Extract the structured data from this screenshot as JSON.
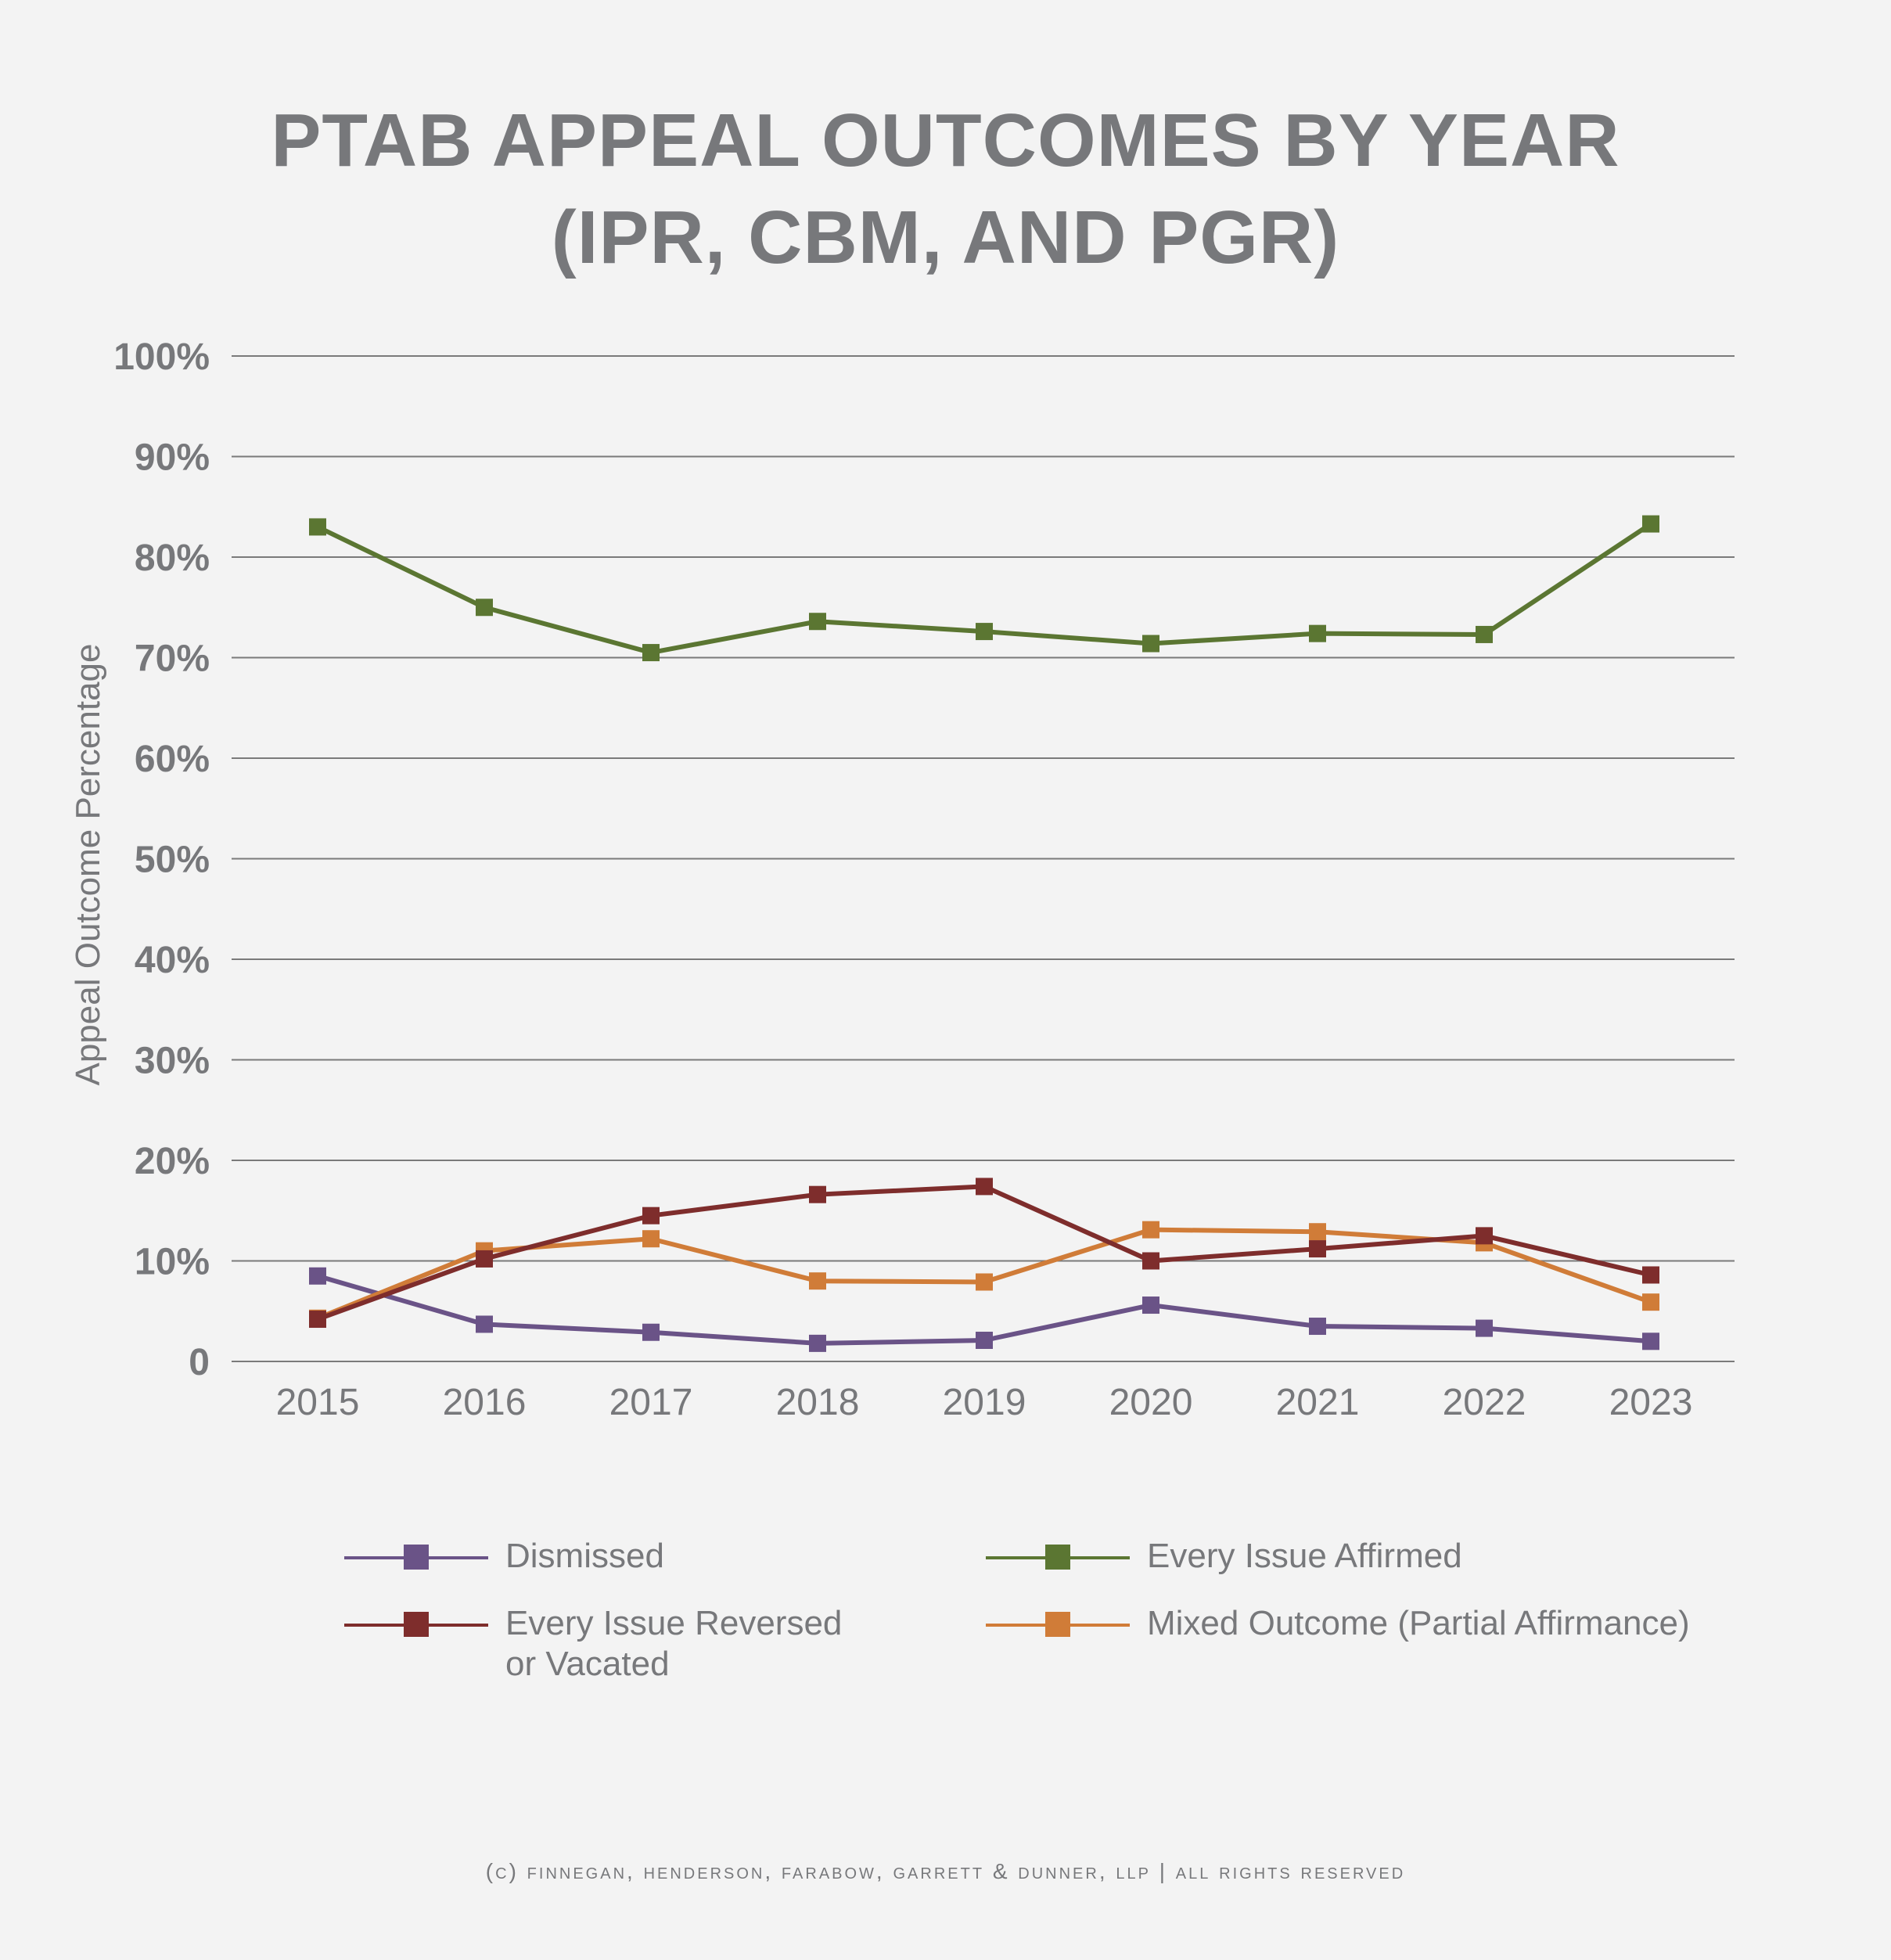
{
  "title_line1": "PTAB APPEAL OUTCOMES BY YEAR",
  "title_line2": "(IPR, CBM, AND PGR)",
  "footer": "(c) finnegan, henderson, farabow, garrett & dunner, llp | all rights reserved",
  "chart_data": {
    "type": "line",
    "title": "PTAB APPEAL OUTCOMES BY YEAR (IPR, CBM, AND PGR)",
    "xlabel": "",
    "ylabel": "Appeal Outcome Percentage",
    "categories": [
      "2015",
      "2016",
      "2017",
      "2018",
      "2019",
      "2020",
      "2021",
      "2022",
      "2023"
    ],
    "y_ticks": [
      "0",
      "10%",
      "20%",
      "30%",
      "40%",
      "50%",
      "60%",
      "70%",
      "80%",
      "90%",
      "100%"
    ],
    "ylim": [
      0,
      100
    ],
    "grid": true,
    "legend_position": "bottom",
    "series": [
      {
        "name": "Dismissed",
        "color": "#6a5387",
        "values": [
          8.5,
          3.7,
          2.9,
          1.8,
          2.1,
          5.6,
          3.5,
          3.3,
          2.0
        ]
      },
      {
        "name": "Every Issue Affirmed",
        "color": "#5b7632",
        "values": [
          83.0,
          75.0,
          70.5,
          73.6,
          72.6,
          71.4,
          72.4,
          72.3,
          83.3
        ]
      },
      {
        "name": "Every Issue Reversed or Vacated",
        "color": "#7e2d2c",
        "values": [
          4.2,
          10.2,
          14.5,
          16.6,
          17.4,
          10.0,
          11.2,
          12.5,
          8.6
        ]
      },
      {
        "name": "Mixed Outcome (Partial Affirmance)",
        "color": "#d07c38",
        "values": [
          4.3,
          11.0,
          12.2,
          8.0,
          7.9,
          13.1,
          12.9,
          11.8,
          5.9
        ]
      }
    ]
  },
  "legend": [
    {
      "label_line1": "Dismissed",
      "label_line2": ""
    },
    {
      "label_line1": "Every Issue Affirmed",
      "label_line2": ""
    },
    {
      "label_line1": "Every Issue Reversed",
      "label_line2": "or Vacated"
    },
    {
      "label_line1": "Mixed Outcome (Partial Affirmance)",
      "label_line2": ""
    }
  ]
}
